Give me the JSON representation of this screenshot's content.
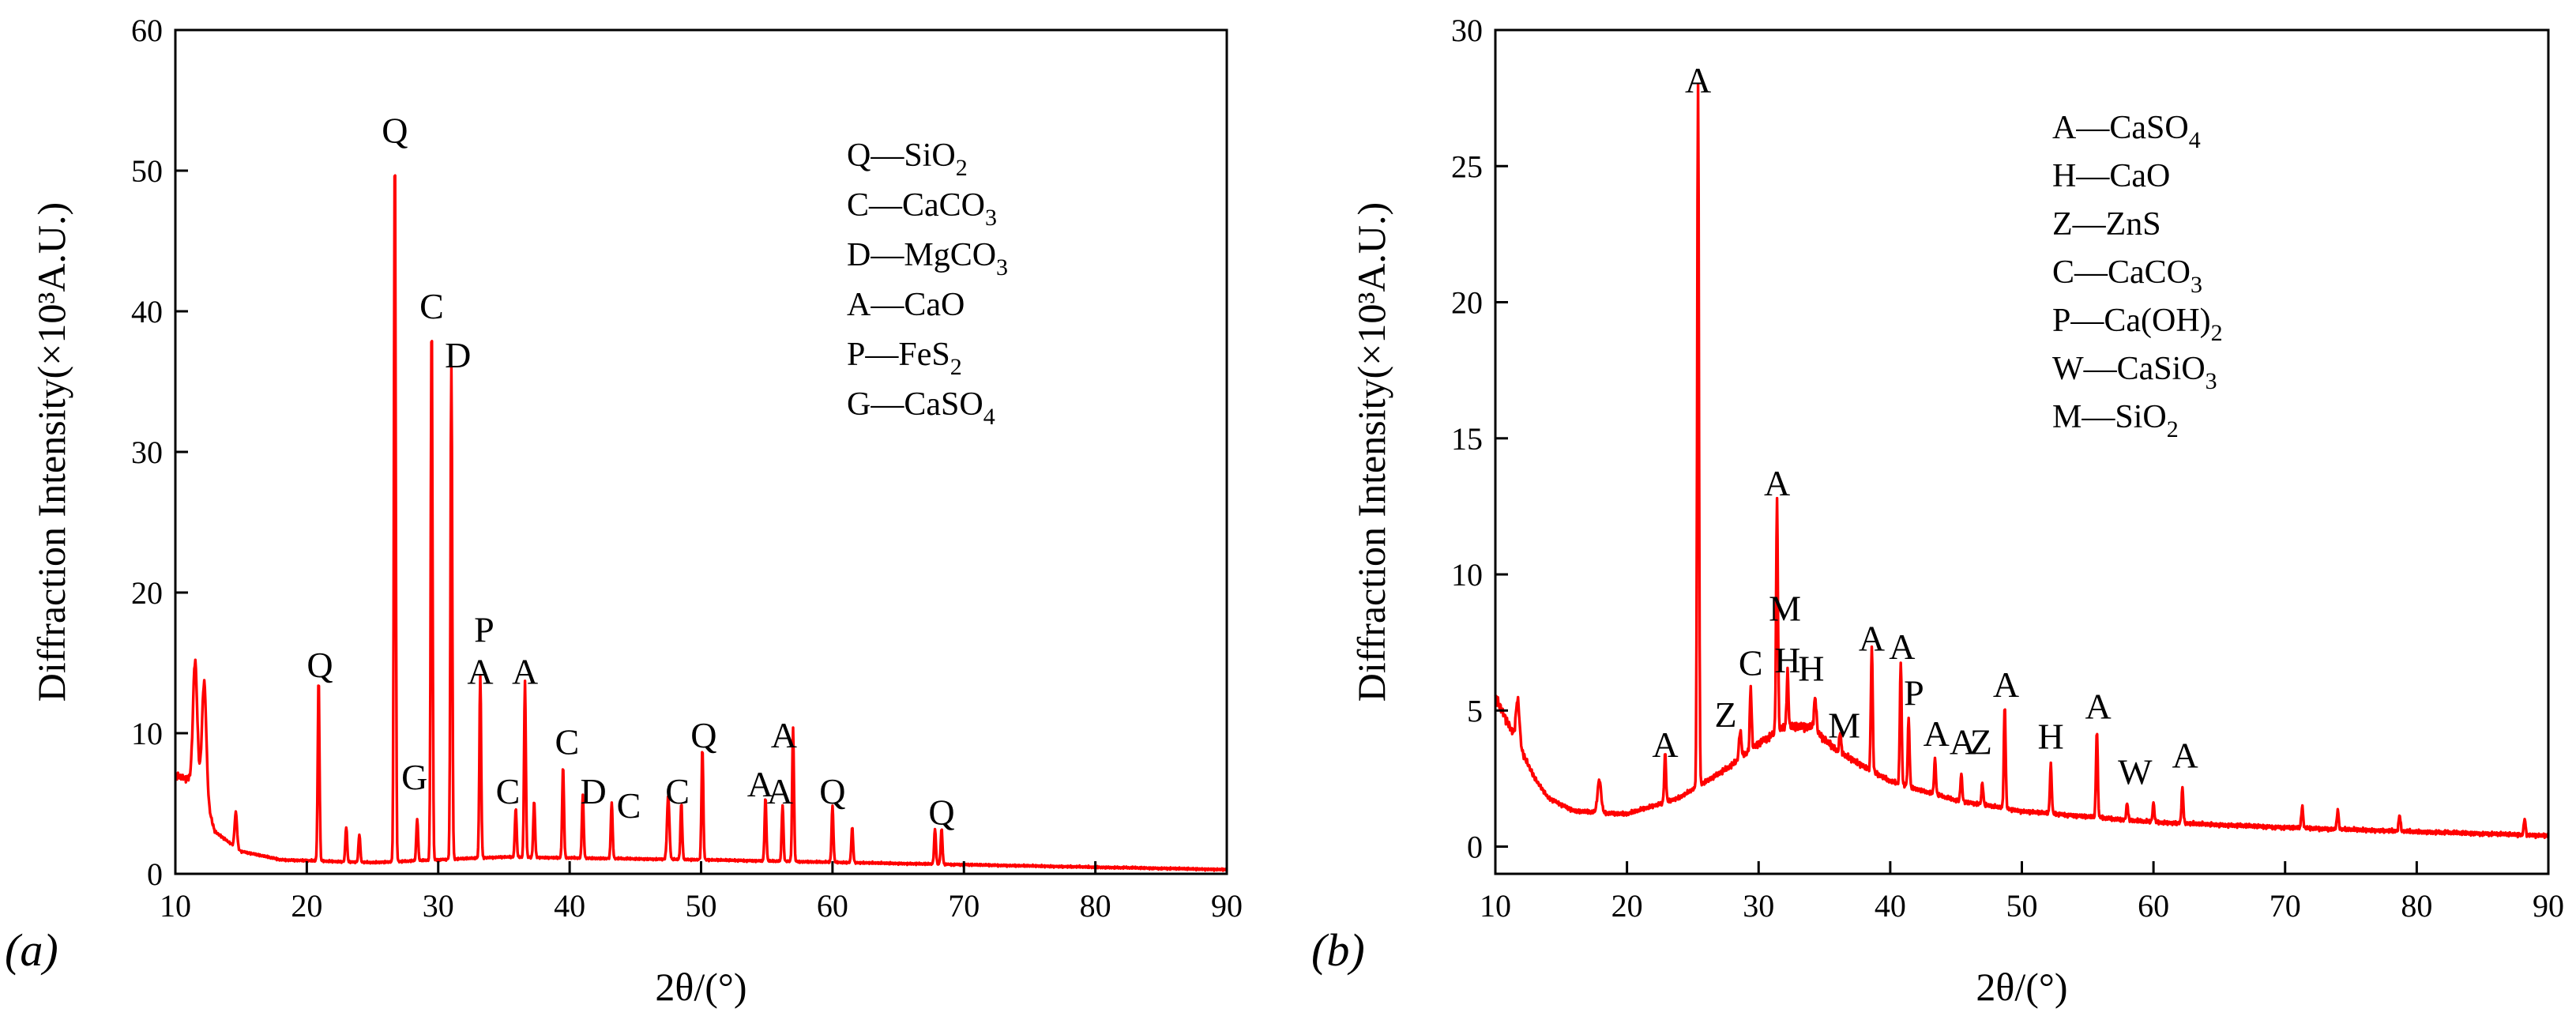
{
  "chart_data": [
    {
      "type": "line",
      "panel_label": "(a)",
      "xlabel": "2θ/(°)",
      "ylabel": "Diffraction Intensity(×10³A.U.)",
      "xlim": [
        10,
        90
      ],
      "ylim": [
        0,
        60
      ],
      "xticks": [
        10,
        20,
        30,
        40,
        50,
        60,
        70,
        80,
        90
      ],
      "yticks": [
        0,
        10,
        20,
        30,
        40,
        50,
        60
      ],
      "line_color": "#ff0000",
      "legend": [
        {
          "symbol": "Q",
          "formula": "SiO",
          "sub": "2"
        },
        {
          "symbol": "C",
          "formula": "CaCO",
          "sub": "3"
        },
        {
          "symbol": "D",
          "formula": "MgCO",
          "sub": "3"
        },
        {
          "symbol": "A",
          "formula": "CaO",
          "sub": ""
        },
        {
          "symbol": "P",
          "formula": "FeS",
          "sub": "2"
        },
        {
          "symbol": "G",
          "formula": "CaSO",
          "sub": "4"
        }
      ],
      "baseline": [
        [
          10,
          7.0
        ],
        [
          12,
          6.5
        ],
        [
          13,
          3.0
        ],
        [
          15,
          1.6
        ],
        [
          18,
          1.0
        ],
        [
          25,
          0.8
        ],
        [
          35,
          1.2
        ],
        [
          50,
          1.0
        ],
        [
          90,
          0.3
        ]
      ],
      "peaks": [
        {
          "x": 11.5,
          "y": 8.5,
          "w": 0.35
        },
        {
          "x": 12.2,
          "y": 7.8,
          "w": 0.35
        },
        {
          "x": 14.6,
          "y": 2.5,
          "w": 0.2
        },
        {
          "x": 20.9,
          "y": 13.0,
          "w": 0.15
        },
        {
          "x": 23.0,
          "y": 2.5,
          "w": 0.15
        },
        {
          "x": 24.0,
          "y": 2.0,
          "w": 0.15
        },
        {
          "x": 26.7,
          "y": 51.0,
          "w": 0.15
        },
        {
          "x": 28.4,
          "y": 3.0,
          "w": 0.15
        },
        {
          "x": 29.5,
          "y": 38.5,
          "w": 0.15
        },
        {
          "x": 31.0,
          "y": 35.0,
          "w": 0.15
        },
        {
          "x": 33.2,
          "y": 13.0,
          "w": 0.15
        },
        {
          "x": 35.9,
          "y": 3.5,
          "w": 0.15
        },
        {
          "x": 36.6,
          "y": 12.5,
          "w": 0.15
        },
        {
          "x": 37.3,
          "y": 4.0,
          "w": 0.15
        },
        {
          "x": 39.5,
          "y": 6.5,
          "w": 0.15
        },
        {
          "x": 41.0,
          "y": 4.5,
          "w": 0.15
        },
        {
          "x": 43.2,
          "y": 4.0,
          "w": 0.15
        },
        {
          "x": 47.5,
          "y": 4.5,
          "w": 0.2
        },
        {
          "x": 48.5,
          "y": 4.0,
          "w": 0.15
        },
        {
          "x": 50.1,
          "y": 8.0,
          "w": 0.15
        },
        {
          "x": 54.9,
          "y": 4.5,
          "w": 0.15
        },
        {
          "x": 56.2,
          "y": 4.0,
          "w": 0.15
        },
        {
          "x": 57.0,
          "y": 9.5,
          "w": 0.15
        },
        {
          "x": 60.0,
          "y": 4.0,
          "w": 0.15
        },
        {
          "x": 61.5,
          "y": 2.5,
          "w": 0.15
        },
        {
          "x": 67.8,
          "y": 2.5,
          "w": 0.15
        },
        {
          "x": 68.3,
          "y": 2.5,
          "w": 0.15
        }
      ],
      "annotations": [
        {
          "text": "Q",
          "x": 21.0,
          "y": 14.0
        },
        {
          "text": "Q",
          "x": 26.7,
          "y": 52.0
        },
        {
          "text": "G",
          "x": 28.2,
          "y": 6.0
        },
        {
          "text": "C",
          "x": 29.5,
          "y": 39.5
        },
        {
          "text": "D",
          "x": 31.5,
          "y": 36.0
        },
        {
          "text": "P",
          "x": 33.5,
          "y": 16.5
        },
        {
          "text": "A",
          "x": 33.2,
          "y": 13.5
        },
        {
          "text": "C",
          "x": 35.3,
          "y": 5.0
        },
        {
          "text": "A",
          "x": 36.6,
          "y": 13.5
        },
        {
          "text": "C",
          "x": 39.8,
          "y": 8.5
        },
        {
          "text": "D",
          "x": 41.8,
          "y": 5.0
        },
        {
          "text": "C",
          "x": 44.5,
          "y": 4.0
        },
        {
          "text": "C",
          "x": 48.2,
          "y": 5.0
        },
        {
          "text": "Q",
          "x": 50.2,
          "y": 9.0
        },
        {
          "text": "A",
          "x": 54.5,
          "y": 5.5
        },
        {
          "text": "A",
          "x": 56.0,
          "y": 5.0
        },
        {
          "text": "A",
          "x": 56.3,
          "y": 9.0
        },
        {
          "text": "Q",
          "x": 60.0,
          "y": 5.0
        },
        {
          "text": "Q",
          "x": 68.3,
          "y": 3.5
        }
      ]
    },
    {
      "type": "line",
      "panel_label": "(b)",
      "xlabel": "2θ/(°)",
      "ylabel": "Diffraction Intensity(×10³A.U.)",
      "xlim": [
        10,
        90
      ],
      "ylim": [
        -1,
        30
      ],
      "xticks": [
        10,
        20,
        30,
        40,
        50,
        60,
        70,
        80,
        90
      ],
      "yticks": [
        0,
        5,
        10,
        15,
        20,
        25,
        30
      ],
      "line_color": "#ff0000",
      "legend": [
        {
          "symbol": "A",
          "formula": "CaSO",
          "sub": "4"
        },
        {
          "symbol": "H",
          "formula": "CaO",
          "sub": ""
        },
        {
          "symbol": "Z",
          "formula": "ZnS",
          "sub": ""
        },
        {
          "symbol": "C",
          "formula": "CaCO",
          "sub": "3"
        },
        {
          "symbol": "P",
          "formula": "Ca(OH)",
          "sub": "2"
        },
        {
          "symbol": "W",
          "formula": "CaSiO",
          "sub": "3"
        },
        {
          "symbol": "M",
          "formula": "SiO",
          "sub": "2"
        }
      ],
      "baseline": [
        [
          10,
          5.5
        ],
        [
          11,
          4.5
        ],
        [
          12,
          3.5
        ],
        [
          13,
          2.5
        ],
        [
          14,
          1.8
        ],
        [
          16,
          1.3
        ],
        [
          20,
          1.2
        ],
        [
          24,
          1.8
        ],
        [
          28,
          3.0
        ],
        [
          30,
          3.8
        ],
        [
          32,
          4.4
        ],
        [
          34,
          4.4
        ],
        [
          36,
          3.5
        ],
        [
          40,
          2.4
        ],
        [
          45,
          1.7
        ],
        [
          50,
          1.3
        ],
        [
          60,
          0.9
        ],
        [
          70,
          0.7
        ],
        [
          90,
          0.4
        ]
      ],
      "peaks": [
        {
          "x": 11.7,
          "y": 1.6,
          "w": 0.3
        },
        {
          "x": 17.9,
          "y": 1.2,
          "w": 0.3
        },
        {
          "x": 22.9,
          "y": 1.8,
          "w": 0.15
        },
        {
          "x": 25.4,
          "y": 25.8,
          "w": 0.15
        },
        {
          "x": 28.6,
          "y": 1.0,
          "w": 0.2
        },
        {
          "x": 29.4,
          "y": 2.3,
          "w": 0.15
        },
        {
          "x": 31.4,
          "y": 8.5,
          "w": 0.15
        },
        {
          "x": 32.2,
          "y": 2.0,
          "w": 0.15
        },
        {
          "x": 34.3,
          "y": 1.2,
          "w": 0.2
        },
        {
          "x": 36.2,
          "y": 0.8,
          "w": 0.15
        },
        {
          "x": 38.6,
          "y": 4.6,
          "w": 0.15
        },
        {
          "x": 40.8,
          "y": 4.5,
          "w": 0.15
        },
        {
          "x": 41.4,
          "y": 2.5,
          "w": 0.15
        },
        {
          "x": 43.4,
          "y": 1.3,
          "w": 0.15
        },
        {
          "x": 45.4,
          "y": 1.0,
          "w": 0.15
        },
        {
          "x": 47.0,
          "y": 0.8,
          "w": 0.15
        },
        {
          "x": 48.7,
          "y": 3.8,
          "w": 0.15
        },
        {
          "x": 52.2,
          "y": 1.8,
          "w": 0.15
        },
        {
          "x": 55.7,
          "y": 3.2,
          "w": 0.15
        },
        {
          "x": 58.0,
          "y": 0.6,
          "w": 0.15
        },
        {
          "x": 60.0,
          "y": 0.7,
          "w": 0.15
        },
        {
          "x": 62.2,
          "y": 1.3,
          "w": 0.15
        },
        {
          "x": 71.3,
          "y": 0.8,
          "w": 0.15
        },
        {
          "x": 74.0,
          "y": 0.7,
          "w": 0.15
        },
        {
          "x": 78.7,
          "y": 0.6,
          "w": 0.15
        },
        {
          "x": 88.2,
          "y": 0.6,
          "w": 0.15
        }
      ],
      "annotations": [
        {
          "text": "A",
          "x": 25.4,
          "y": 27.7
        },
        {
          "text": "A",
          "x": 22.9,
          "y": 3.3
        },
        {
          "text": "Z",
          "x": 27.5,
          "y": 4.4
        },
        {
          "text": "C",
          "x": 29.4,
          "y": 6.3
        },
        {
          "text": "A",
          "x": 31.4,
          "y": 12.9
        },
        {
          "text": "M",
          "x": 32.0,
          "y": 8.3
        },
        {
          "text": "H",
          "x": 32.2,
          "y": 6.4
        },
        {
          "text": "H",
          "x": 34.0,
          "y": 6.1
        },
        {
          "text": "M",
          "x": 36.5,
          "y": 4.0
        },
        {
          "text": "A",
          "x": 38.6,
          "y": 7.2
        },
        {
          "text": "A",
          "x": 40.9,
          "y": 6.9
        },
        {
          "text": "P",
          "x": 41.8,
          "y": 5.2
        },
        {
          "text": "A",
          "x": 43.5,
          "y": 3.7
        },
        {
          "text": "A",
          "x": 45.5,
          "y": 3.4
        },
        {
          "text": "Z",
          "x": 46.9,
          "y": 3.4
        },
        {
          "text": "A",
          "x": 48.8,
          "y": 5.5
        },
        {
          "text": "H",
          "x": 52.2,
          "y": 3.6
        },
        {
          "text": "A",
          "x": 55.8,
          "y": 4.7
        },
        {
          "text": "W",
          "x": 58.6,
          "y": 2.3
        },
        {
          "text": "A",
          "x": 62.4,
          "y": 2.9
        }
      ]
    }
  ]
}
